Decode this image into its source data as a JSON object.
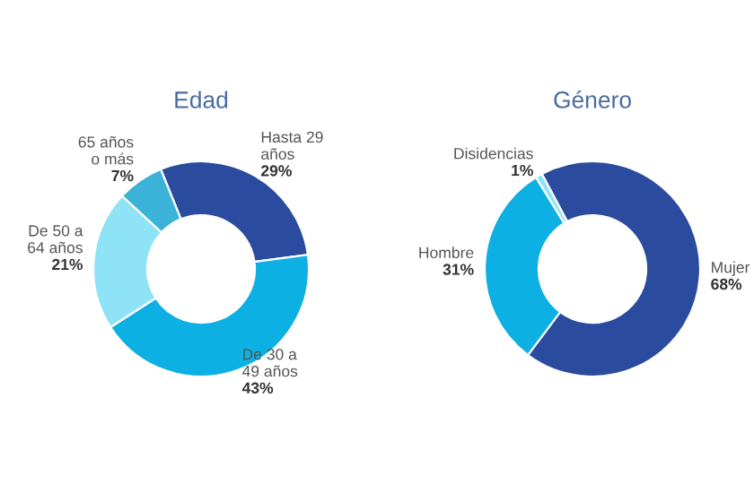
{
  "chart_data": [
    {
      "type": "donut",
      "title": "Edad",
      "categories": [
        "Hasta 29\naños",
        "De 30 a\n49 años",
        "De 50 a\n64 años",
        "65 años\no más"
      ],
      "values": [
        29,
        43,
        21,
        7
      ],
      "value_labels": [
        "29%",
        "43%",
        "21%",
        "7%"
      ],
      "colors": [
        "#2b4b9e",
        "#0db0e2",
        "#8fe3f7",
        "#3bb3d9"
      ],
      "legend": false
    },
    {
      "type": "donut",
      "title": "Género",
      "categories": [
        "Mujer",
        "Hombre",
        "Disidencias"
      ],
      "values": [
        68,
        31,
        1
      ],
      "value_labels": [
        "68%",
        "31%",
        "1%"
      ],
      "colors": [
        "#2b4b9e",
        "#0db0e2",
        "#8fe3f7"
      ],
      "legend": false
    }
  ]
}
